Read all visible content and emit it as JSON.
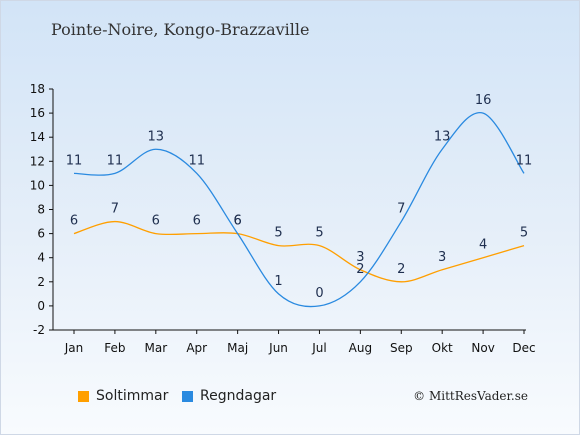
{
  "title": "Pointe-Noire, Kongo-Brazzaville",
  "credit": "© MittResVader.se",
  "chart_data": {
    "type": "line",
    "categories": [
      "Jan",
      "Feb",
      "Mar",
      "Apr",
      "Maj",
      "Jun",
      "Jul",
      "Aug",
      "Sep",
      "Okt",
      "Nov",
      "Dec"
    ],
    "ylim": [
      -2,
      18
    ],
    "yticks": [
      -2,
      0,
      2,
      4,
      6,
      8,
      10,
      12,
      14,
      16,
      18
    ],
    "grid": false,
    "legend_position": "bottom-left",
    "series": [
      {
        "name": "Soltimmar",
        "color": "#ff9f00",
        "values": [
          6,
          7,
          6,
          6,
          6,
          5,
          5,
          3,
          2,
          3,
          4,
          5
        ]
      },
      {
        "name": "Regndagar",
        "color": "#2a8ae0",
        "values": [
          11,
          11,
          13,
          11,
          6,
          1,
          0,
          2,
          7,
          13,
          16,
          11
        ]
      }
    ]
  }
}
